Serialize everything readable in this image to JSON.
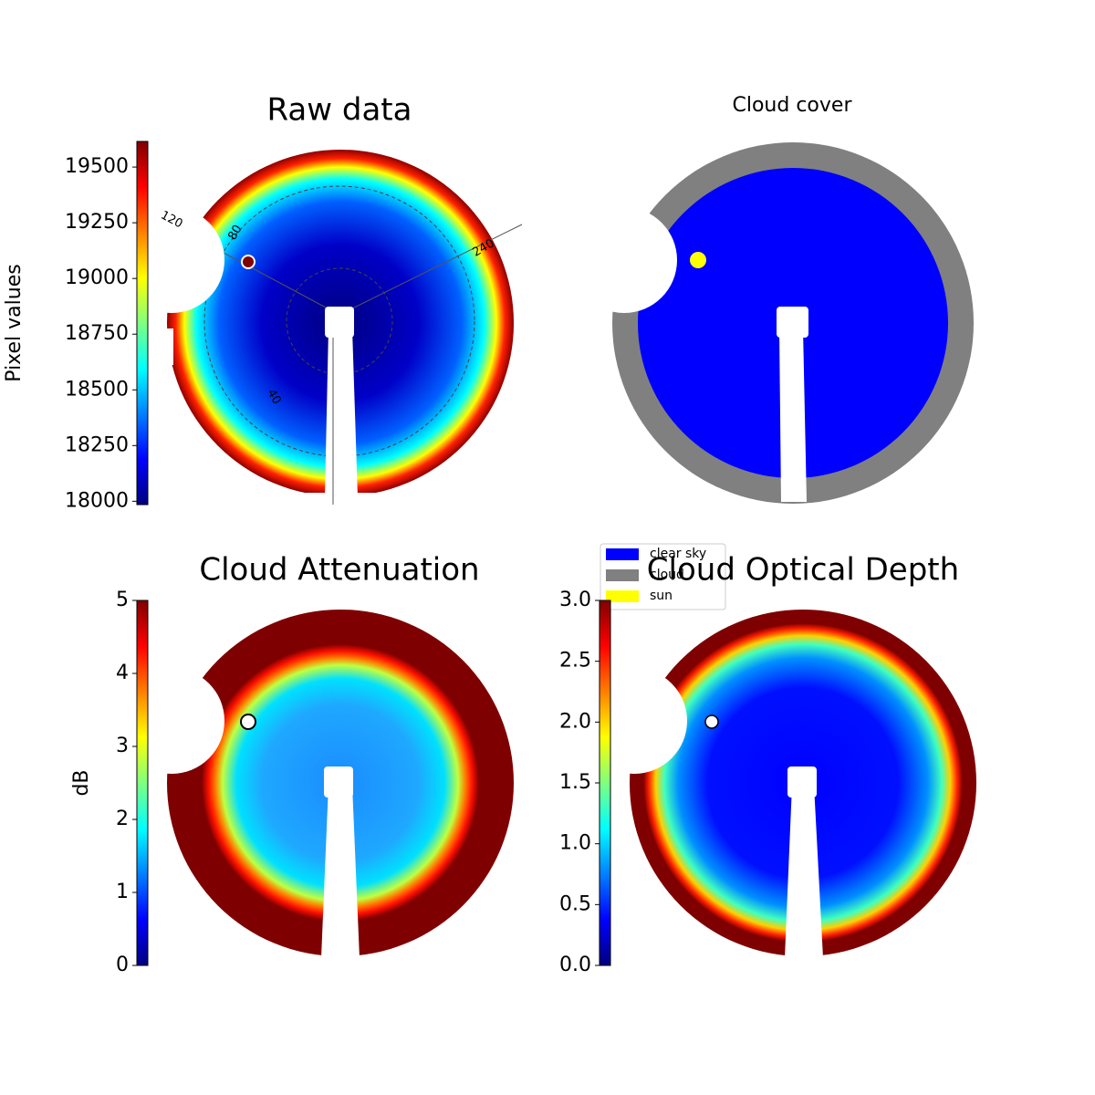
{
  "chart_data": [
    {
      "type": "image",
      "title": "Raw data",
      "colorbar": {
        "label": "Pixel values",
        "lim": [
          17985,
          19615
        ],
        "ticks": [
          18000,
          18250,
          18500,
          18750,
          19000,
          19250,
          19500
        ]
      },
      "annotations": [
        "120",
        "80",
        "240",
        "40"
      ]
    },
    {
      "type": "categorical-image",
      "title": "Cloud cover",
      "series": [
        {
          "name": "clear sky",
          "color": "#0000ff"
        },
        {
          "name": "cloud",
          "color": "#808080"
        },
        {
          "name": "sun",
          "color": "#ffff00"
        }
      ]
    },
    {
      "type": "image",
      "title": "Cloud Attenuation",
      "colorbar": {
        "label": "dB",
        "lim": [
          0,
          5
        ],
        "ticks": [
          0,
          1,
          2,
          3,
          4,
          5
        ]
      }
    },
    {
      "type": "image",
      "title": "Cloud Optical Depth",
      "colorbar": {
        "lim": [
          0,
          3
        ],
        "ticks": [
          {
            "value": 0,
            "label": "0.0"
          },
          {
            "value": 0.5,
            "label": "0.5"
          },
          {
            "value": 1,
            "label": "1.0"
          },
          {
            "value": 1.5,
            "label": "1.5"
          },
          {
            "value": 2,
            "label": "2.0"
          },
          {
            "value": 2.5,
            "label": "2.5"
          },
          {
            "value": 3,
            "label": "3.0"
          }
        ]
      }
    }
  ]
}
